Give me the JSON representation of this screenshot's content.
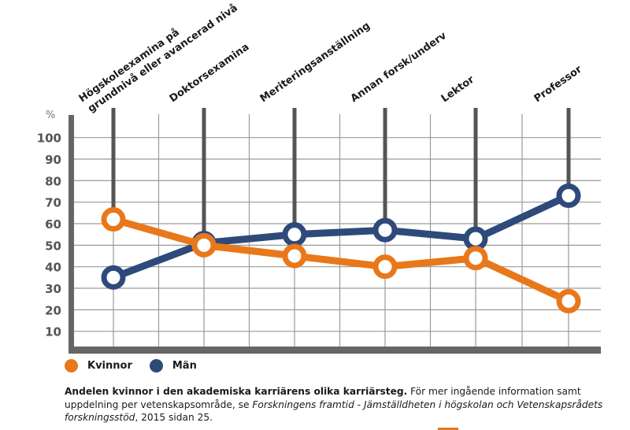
{
  "chart_data": {
    "type": "line",
    "title": "Andelen kvinnor i den akademiska karriärens olika karriärsteg.",
    "xlabel": "",
    "ylabel": "%",
    "ylim": [
      0,
      100
    ],
    "yticks": [
      10,
      20,
      30,
      40,
      50,
      60,
      70,
      80,
      90,
      100
    ],
    "grid": true,
    "legend_position": "bottom-left",
    "categories": [
      "Högskoleexamina på grundnivå eller avancerad nivå",
      "Doktorsexamina",
      "Meriteringsanställning",
      "Annan forsk/underv",
      "Lektor",
      "Professor"
    ],
    "category_label_lines": [
      [
        "Högskoleexamina på",
        "grundnivå eller avancerad nivå"
      ],
      [
        "Doktorsexamina"
      ],
      [
        "Meriteringsanställning"
      ],
      [
        "Annan forsk/underv"
      ],
      [
        "Lektor"
      ],
      [
        "Professor"
      ]
    ],
    "series": [
      {
        "name": "Kvinnor",
        "color": "#E8781A",
        "values": [
          62,
          50,
          45,
          40,
          44,
          24
        ]
      },
      {
        "name": "Män",
        "color": "#2D4A7A",
        "values": [
          35,
          51,
          55,
          57,
          53,
          73
        ]
      }
    ]
  },
  "colors": {
    "axis": "#666666",
    "grid": "#9a9a9a",
    "dropline": "#555555"
  },
  "caption": {
    "bold": "Andelen kvinnor i den akademiska karriärens olika karriärsteg.",
    "text1": " För mer ingående information samt uppdelning per vetenskapsområde, se ",
    "italic": "Forskningens framtid - Jämställdheten i högskolan och Vetenskapsrådets forskningsstöd",
    "text2": ", 2015 sidan 25."
  }
}
